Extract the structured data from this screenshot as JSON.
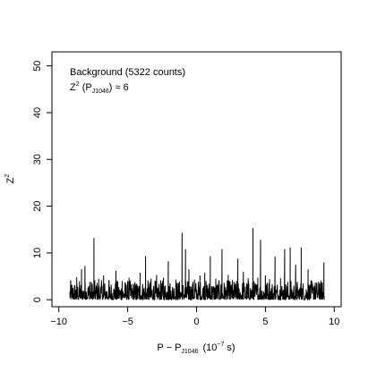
{
  "chart_data": {
    "type": "line",
    "title": "",
    "xlabel": "P − P",
    "xlabel_sub": "J1046",
    "xlabel_unit_prefix": "(10",
    "xlabel_unit_exp": "−7",
    "xlabel_unit_suffix": " s)",
    "ylabel": "Z",
    "ylabel_sup": "2",
    "xlim": [
      -10.5,
      10.5
    ],
    "ylim": [
      -1.5,
      53
    ],
    "xticks": [
      -10,
      -5,
      0,
      5,
      10
    ],
    "xtick_labels": [
      "−10",
      "−5",
      "0",
      "5",
      "10"
    ],
    "yticks": [
      0,
      10,
      20,
      30,
      40,
      50
    ],
    "ytick_labels": [
      "0",
      "10",
      "20",
      "30",
      "40",
      "50"
    ],
    "grid": false,
    "annotations": {
      "line1": "Background (5322 counts)",
      "line2_prefix": "Z",
      "line2_sup": "2",
      "line2_open": " (P",
      "line2_sub": "J1046",
      "line2_suffix": ") ≈ 6"
    },
    "series": [
      {
        "x_start": -9.2,
        "x_end": 9.3,
        "baseline": 0,
        "peaks": [
          {
            "x": -9.05,
            "y": 3.0
          },
          {
            "x": -8.7,
            "y": 4.8
          },
          {
            "x": -8.35,
            "y": 6.5
          },
          {
            "x": -8.1,
            "y": 7.2
          },
          {
            "x": -7.75,
            "y": 3.8
          },
          {
            "x": -7.45,
            "y": 13.2
          },
          {
            "x": -7.1,
            "y": 4.5
          },
          {
            "x": -6.75,
            "y": 5.2
          },
          {
            "x": -6.35,
            "y": 4.2
          },
          {
            "x": -5.85,
            "y": 6.2
          },
          {
            "x": -5.4,
            "y": 4.0
          },
          {
            "x": -4.9,
            "y": 4.7
          },
          {
            "x": -4.5,
            "y": 3.2
          },
          {
            "x": -4.1,
            "y": 5.8
          },
          {
            "x": -3.7,
            "y": 9.3
          },
          {
            "x": -3.3,
            "y": 4.5
          },
          {
            "x": -2.9,
            "y": 5.3
          },
          {
            "x": -2.4,
            "y": 4.7
          },
          {
            "x": -2.05,
            "y": 8.2
          },
          {
            "x": -1.5,
            "y": 4.3
          },
          {
            "x": -1.05,
            "y": 14.3
          },
          {
            "x": -0.8,
            "y": 10.8
          },
          {
            "x": -0.55,
            "y": 6.5
          },
          {
            "x": -0.15,
            "y": 4.3
          },
          {
            "x": 0.25,
            "y": 5.2
          },
          {
            "x": 0.6,
            "y": 5.8
          },
          {
            "x": 1.0,
            "y": 9.3
          },
          {
            "x": 1.4,
            "y": 4.5
          },
          {
            "x": 1.85,
            "y": 10.8
          },
          {
            "x": 2.3,
            "y": 5.3
          },
          {
            "x": 2.6,
            "y": 4.2
          },
          {
            "x": 3.0,
            "y": 8.8
          },
          {
            "x": 3.4,
            "y": 6.0
          },
          {
            "x": 3.75,
            "y": 4.6
          },
          {
            "x": 4.1,
            "y": 15.3
          },
          {
            "x": 4.45,
            "y": 4.7
          },
          {
            "x": 4.65,
            "y": 12.8
          },
          {
            "x": 5.0,
            "y": 5.2
          },
          {
            "x": 5.3,
            "y": 4.4
          },
          {
            "x": 5.7,
            "y": 9.2
          },
          {
            "x": 6.1,
            "y": 4.6
          },
          {
            "x": 6.4,
            "y": 10.8
          },
          {
            "x": 6.8,
            "y": 11.2
          },
          {
            "x": 7.2,
            "y": 7.5
          },
          {
            "x": 7.6,
            "y": 11.2
          },
          {
            "x": 8.1,
            "y": 6.5
          },
          {
            "x": 8.55,
            "y": 3.0
          },
          {
            "x": 8.95,
            "y": 3.5
          },
          {
            "x": 9.25,
            "y": 8.0
          }
        ]
      }
    ]
  }
}
